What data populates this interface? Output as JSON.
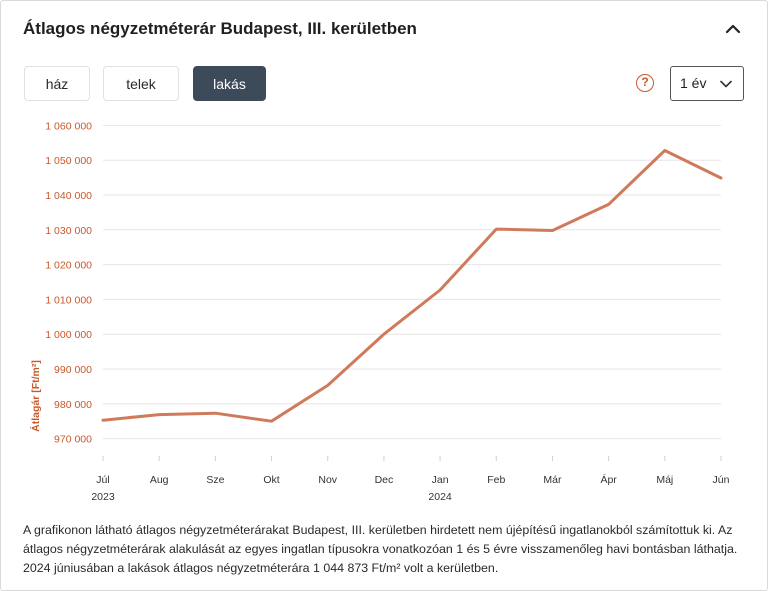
{
  "header": {
    "title": "Átlagos négyzetméterár Budapest, III. kerületben"
  },
  "tabs": [
    {
      "label": "ház",
      "active": false
    },
    {
      "label": "telek",
      "active": false
    },
    {
      "label": "lakás",
      "active": true
    }
  ],
  "help_icon": "?",
  "period_select": {
    "value": "1 év"
  },
  "colors": {
    "line": "#d07a5c",
    "axis_text": "#c9582a",
    "active_tab": "#3d4a5a"
  },
  "chart_data": {
    "type": "line",
    "ylabel": "Átlagár [Ft/m²]",
    "xlabel": "",
    "ylim": [
      965000,
      1065000
    ],
    "yticks": [
      970000,
      980000,
      990000,
      1000000,
      1010000,
      1020000,
      1030000,
      1040000,
      1050000,
      1060000
    ],
    "ytick_labels": [
      "970 000",
      "980 000",
      "990 000",
      "1 000 000",
      "1 010 000",
      "1 020 000",
      "1 030 000",
      "1 040 000",
      "1 050 000",
      "1 060 000"
    ],
    "categories": [
      "Júl",
      "Aug",
      "Sze",
      "Okt",
      "Nov",
      "Dec",
      "Jan",
      "Feb",
      "Már",
      "Ápr",
      "Máj",
      "Jún"
    ],
    "year_labels": [
      {
        "index": 0,
        "label": "2023"
      },
      {
        "index": 6,
        "label": "2024"
      }
    ],
    "series": [
      {
        "values": [
          975300,
          976900,
          977300,
          975000,
          985300,
          1000000,
          1012700,
          1030200,
          1029800,
          1037300,
          1052800,
          1044873
        ]
      }
    ],
    "grid": true
  },
  "description": "A grafikonon látható átlagos négyzetméterárakat Budapest, III. kerületben hirdetett nem újépítésű ingatlanokból számítottuk ki. Az átlagos négyzetméterárak alakulását az egyes ingatlan típusokra vonatkozóan 1 és 5 évre visszamenőleg havi bontásban láthatja. 2024 júniusában a lakások átlagos négyzetméterára 1 044 873 Ft/m² volt a kerületben."
}
